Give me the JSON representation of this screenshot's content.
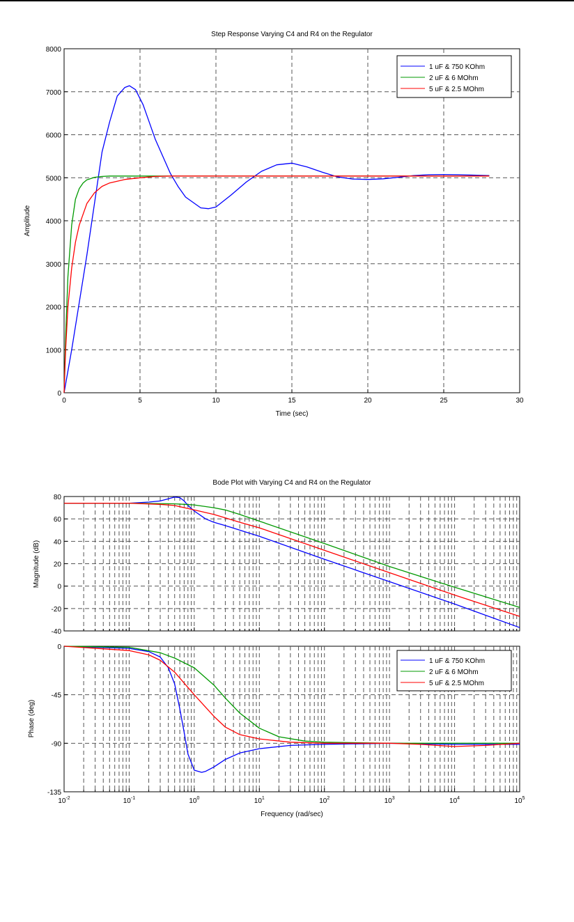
{
  "colors": {
    "blue": "#0000ff",
    "green": "#009900",
    "red": "#ff0000",
    "grid": "#555555"
  },
  "chart_data": [
    {
      "type": "line",
      "title": "Step Response Varying C4 and R4 on the Regulator",
      "xlabel": "Time (sec)",
      "ylabel": "Amplitude",
      "xlim": [
        0,
        30
      ],
      "ylim": [
        0,
        8000
      ],
      "xticks": [
        0,
        5,
        10,
        15,
        20,
        25,
        30
      ],
      "yticks": [
        0,
        1000,
        2000,
        3000,
        4000,
        5000,
        6000,
        7000,
        8000
      ],
      "grid": true,
      "legend": "top-right",
      "series": [
        {
          "name": "1 uF & 750 KOhm",
          "color": "#0000ff",
          "x": [
            0,
            0.5,
            1,
            1.5,
            2,
            2.5,
            3,
            3.5,
            4,
            4.3,
            4.7,
            5.2,
            6,
            7,
            7.5,
            8,
            9,
            9.5,
            10,
            11,
            12,
            13,
            14,
            15,
            16,
            17,
            18,
            19,
            20,
            21,
            22,
            23,
            24,
            25,
            26,
            27,
            28
          ],
          "y": [
            0,
            1000,
            2100,
            3200,
            4400,
            5600,
            6300,
            6900,
            7100,
            7140,
            7050,
            6700,
            5900,
            5100,
            4800,
            4550,
            4300,
            4280,
            4320,
            4600,
            4900,
            5150,
            5300,
            5340,
            5250,
            5130,
            5020,
            4970,
            4960,
            4975,
            5010,
            5050,
            5070,
            5075,
            5070,
            5060,
            5050
          ]
        },
        {
          "name": "2 uF & 6 MOhm",
          "color": "#009900",
          "x": [
            0,
            0.1,
            0.25,
            0.5,
            0.75,
            1,
            1.25,
            1.5,
            2,
            2.5,
            3,
            4,
            6,
            28
          ],
          "y": [
            0,
            1300,
            2700,
            3900,
            4500,
            4750,
            4880,
            4950,
            5010,
            5030,
            5040,
            5040,
            5040,
            5040
          ]
        },
        {
          "name": "5 uF & 2.5 MOhm",
          "color": "#ff0000",
          "x": [
            0,
            0.1,
            0.25,
            0.5,
            0.75,
            1,
            1.5,
            2,
            2.5,
            3,
            4,
            5,
            6,
            7,
            28
          ],
          "y": [
            0,
            1000,
            2000,
            2900,
            3500,
            3900,
            4400,
            4650,
            4800,
            4880,
            4960,
            5000,
            5030,
            5040,
            5040
          ]
        }
      ]
    },
    {
      "type": "line",
      "title": "Bode Plot with Varying C4 and R4 on the Regulator",
      "xlabel": "Frequency (rad/sec)",
      "ylabel": "Magnitude (dB)",
      "xscale": "log",
      "xlim": [
        0.01,
        100000
      ],
      "ylim": [
        -40,
        80
      ],
      "xtick_labels": [
        "10-2",
        "10-1",
        "100",
        "101",
        "102",
        "103",
        "104",
        "105"
      ],
      "yticks": [
        -40,
        -20,
        0,
        20,
        40,
        60,
        80
      ],
      "grid": true,
      "series": [
        {
          "name": "1 uF & 750 KOhm",
          "color": "#0000ff",
          "x": [
            0.01,
            0.1,
            0.2,
            0.3,
            0.4,
            0.5,
            0.6,
            0.7,
            0.8,
            1,
            1.5,
            2,
            3,
            5,
            10,
            100,
            1000,
            10000,
            100000
          ],
          "y": [
            74,
            74,
            75,
            76,
            78,
            79.5,
            79,
            76,
            72,
            67,
            60,
            57,
            54,
            50,
            44.5,
            24,
            4,
            -16,
            -37
          ]
        },
        {
          "name": "2 uF & 6 MOhm",
          "color": "#009900",
          "x": [
            0.01,
            0.1,
            0.5,
            1,
            2,
            3,
            5,
            10,
            100,
            1000,
            10000,
            100000
          ],
          "y": [
            74,
            74,
            73.5,
            72.5,
            70,
            68,
            64,
            58,
            38,
            17.5,
            -1,
            -19
          ]
        },
        {
          "name": "5 uF & 2.5 MOhm",
          "color": "#ff0000",
          "x": [
            0.01,
            0.1,
            0.3,
            0.5,
            1,
            2,
            3,
            5,
            10,
            100,
            1000,
            10000,
            100000
          ],
          "y": [
            74,
            74,
            73,
            72,
            68,
            64,
            61,
            57,
            52,
            32,
            12,
            -8,
            -27
          ]
        }
      ]
    },
    {
      "type": "line",
      "xlabel": "Frequency (rad/sec)",
      "ylabel": "Phase (deg)",
      "xscale": "log",
      "xlim": [
        0.01,
        100000
      ],
      "ylim": [
        -135,
        0
      ],
      "xtick_labels": [
        "10-2",
        "10-1",
        "100",
        "101",
        "102",
        "103",
        "104",
        "105"
      ],
      "yticks": [
        -135,
        -90,
        -45,
        0
      ],
      "grid": true,
      "legend": "top-right",
      "series": [
        {
          "name": "1 uF & 750 KOhm",
          "color": "#0000ff",
          "x": [
            0.01,
            0.1,
            0.2,
            0.3,
            0.4,
            0.5,
            0.6,
            0.7,
            0.8,
            1,
            1.3,
            1.5,
            2,
            3,
            5,
            10,
            30,
            100,
            1000,
            10000,
            100000
          ],
          "y": [
            0,
            -2,
            -5,
            -10,
            -20,
            -35,
            -58,
            -80,
            -100,
            -115,
            -117,
            -116,
            -112,
            -105,
            -99,
            -95,
            -92,
            -91,
            -90,
            -91,
            -91
          ]
        },
        {
          "name": "2 uF & 6 MOhm",
          "color": "#009900",
          "x": [
            0.01,
            0.1,
            0.3,
            0.5,
            1,
            2,
            3,
            5,
            10,
            20,
            50,
            100,
            1000,
            100000
          ],
          "y": [
            0,
            -1,
            -6,
            -11,
            -20,
            -36,
            -48,
            -62,
            -76,
            -84,
            -88,
            -89,
            -90,
            -90
          ]
        },
        {
          "name": "5 uF & 2.5 MOhm",
          "color": "#ff0000",
          "x": [
            0.01,
            0.1,
            0.2,
            0.3,
            0.5,
            1,
            2,
            3,
            5,
            10,
            30,
            100,
            1000,
            3000,
            10000,
            30000,
            100000
          ],
          "y": [
            0,
            -4,
            -8,
            -13,
            -24,
            -45,
            -65,
            -75,
            -82,
            -86,
            -89,
            -90,
            -90,
            -91,
            -93,
            -92,
            -90
          ]
        }
      ]
    }
  ]
}
